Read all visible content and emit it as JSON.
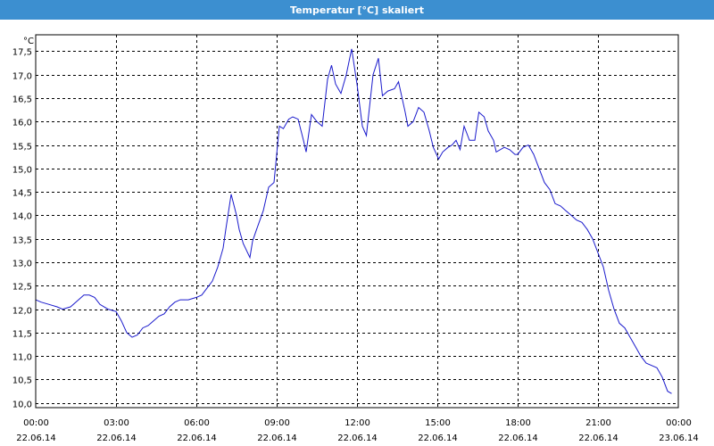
{
  "window": {
    "title": "Temperatur [°C] skaliert"
  },
  "colors": {
    "titlebar": "#3c8fd0",
    "line": "#1a1acc",
    "grid": "#000000"
  },
  "chart_data": {
    "type": "line",
    "title": "Temperatur [°C] skaliert",
    "ylabel": "°C",
    "xlabel": "",
    "ylim": [
      9.9,
      17.85
    ],
    "xlim": [
      0,
      24
    ],
    "grid": true,
    "yticks": [
      {
        "v": 10.0,
        "label": "10,0"
      },
      {
        "v": 10.5,
        "label": "10,5"
      },
      {
        "v": 11.0,
        "label": "11,0"
      },
      {
        "v": 11.5,
        "label": "11,5"
      },
      {
        "v": 12.0,
        "label": "12,0"
      },
      {
        "v": 12.5,
        "label": "12,5"
      },
      {
        "v": 13.0,
        "label": "13,0"
      },
      {
        "v": 13.5,
        "label": "13,5"
      },
      {
        "v": 14.0,
        "label": "14,0"
      },
      {
        "v": 14.5,
        "label": "14,5"
      },
      {
        "v": 15.0,
        "label": "15,0"
      },
      {
        "v": 15.5,
        "label": "15,5"
      },
      {
        "v": 16.0,
        "label": "16,0"
      },
      {
        "v": 16.5,
        "label": "16,5"
      },
      {
        "v": 17.0,
        "label": "17,0"
      },
      {
        "v": 17.5,
        "label": "17,5"
      }
    ],
    "xticks": [
      {
        "v": 0,
        "time": "00:00",
        "date": "22.06.14"
      },
      {
        "v": 3,
        "time": "03:00",
        "date": "22.06.14"
      },
      {
        "v": 6,
        "time": "06:00",
        "date": "22.06.14"
      },
      {
        "v": 9,
        "time": "09:00",
        "date": "22.06.14"
      },
      {
        "v": 12,
        "time": "12:00",
        "date": "22.06.14"
      },
      {
        "v": 15,
        "time": "15:00",
        "date": "22.06.14"
      },
      {
        "v": 18,
        "time": "18:00",
        "date": "22.06.14"
      },
      {
        "v": 21,
        "time": "21:00",
        "date": "22.06.14"
      },
      {
        "v": 24,
        "time": "00:00",
        "date": "23.06.14"
      }
    ],
    "series": [
      {
        "values": [
          [
            0.0,
            12.2
          ],
          [
            0.2,
            12.15
          ],
          [
            0.5,
            12.1
          ],
          [
            0.8,
            12.05
          ],
          [
            1.0,
            12.0
          ],
          [
            1.3,
            12.05
          ],
          [
            1.5,
            12.15
          ],
          [
            1.8,
            12.3
          ],
          [
            2.0,
            12.3
          ],
          [
            2.2,
            12.25
          ],
          [
            2.4,
            12.1
          ],
          [
            2.7,
            12.0
          ],
          [
            3.0,
            11.95
          ],
          [
            3.2,
            11.75
          ],
          [
            3.4,
            11.5
          ],
          [
            3.6,
            11.4
          ],
          [
            3.8,
            11.45
          ],
          [
            4.0,
            11.6
          ],
          [
            4.2,
            11.65
          ],
          [
            4.4,
            11.75
          ],
          [
            4.6,
            11.85
          ],
          [
            4.8,
            11.9
          ],
          [
            5.0,
            12.05
          ],
          [
            5.2,
            12.15
          ],
          [
            5.4,
            12.2
          ],
          [
            5.7,
            12.2
          ],
          [
            6.0,
            12.25
          ],
          [
            6.2,
            12.3
          ],
          [
            6.4,
            12.45
          ],
          [
            6.6,
            12.6
          ],
          [
            6.8,
            12.9
          ],
          [
            7.0,
            13.3
          ],
          [
            7.1,
            13.7
          ],
          [
            7.3,
            14.45
          ],
          [
            7.5,
            14.0
          ],
          [
            7.6,
            13.7
          ],
          [
            7.75,
            13.4
          ],
          [
            8.0,
            13.1
          ],
          [
            8.1,
            13.45
          ],
          [
            8.25,
            13.7
          ],
          [
            8.5,
            14.1
          ],
          [
            8.7,
            14.6
          ],
          [
            8.9,
            14.7
          ],
          [
            9.1,
            15.9
          ],
          [
            9.25,
            15.85
          ],
          [
            9.45,
            16.05
          ],
          [
            9.6,
            16.1
          ],
          [
            9.8,
            16.05
          ],
          [
            10.0,
            15.6
          ],
          [
            10.1,
            15.35
          ],
          [
            10.3,
            16.15
          ],
          [
            10.5,
            16.0
          ],
          [
            10.7,
            15.9
          ],
          [
            10.9,
            16.9
          ],
          [
            11.05,
            17.2
          ],
          [
            11.2,
            16.8
          ],
          [
            11.4,
            16.6
          ],
          [
            11.6,
            17.0
          ],
          [
            11.8,
            17.55
          ],
          [
            12.0,
            16.8
          ],
          [
            12.2,
            15.9
          ],
          [
            12.35,
            15.7
          ],
          [
            12.6,
            17.0
          ],
          [
            12.8,
            17.35
          ],
          [
            12.95,
            16.55
          ],
          [
            13.15,
            16.65
          ],
          [
            13.4,
            16.7
          ],
          [
            13.55,
            16.85
          ],
          [
            13.8,
            16.2
          ],
          [
            13.9,
            15.9
          ],
          [
            14.1,
            16.0
          ],
          [
            14.3,
            16.3
          ],
          [
            14.5,
            16.2
          ],
          [
            14.7,
            15.8
          ],
          [
            14.85,
            15.45
          ],
          [
            15.05,
            15.2
          ],
          [
            15.2,
            15.35
          ],
          [
            15.4,
            15.45
          ],
          [
            15.55,
            15.5
          ],
          [
            15.7,
            15.6
          ],
          [
            15.85,
            15.4
          ],
          [
            16.0,
            15.9
          ],
          [
            16.2,
            15.6
          ],
          [
            16.4,
            15.6
          ],
          [
            16.55,
            16.2
          ],
          [
            16.75,
            16.1
          ],
          [
            16.9,
            15.8
          ],
          [
            17.1,
            15.6
          ],
          [
            17.2,
            15.35
          ],
          [
            17.5,
            15.45
          ],
          [
            17.7,
            15.4
          ],
          [
            17.9,
            15.3
          ],
          [
            18.0,
            15.3
          ],
          [
            18.2,
            15.45
          ],
          [
            18.4,
            15.5
          ],
          [
            18.6,
            15.3
          ],
          [
            18.8,
            15.0
          ],
          [
            19.0,
            14.7
          ],
          [
            19.2,
            14.55
          ],
          [
            19.4,
            14.25
          ],
          [
            19.6,
            14.2
          ],
          [
            19.8,
            14.1
          ],
          [
            20.0,
            14.0
          ],
          [
            20.2,
            13.9
          ],
          [
            20.4,
            13.85
          ],
          [
            20.6,
            13.7
          ],
          [
            20.8,
            13.5
          ],
          [
            21.0,
            13.2
          ],
          [
            21.2,
            12.9
          ],
          [
            21.4,
            12.4
          ],
          [
            21.6,
            12.0
          ],
          [
            21.8,
            11.7
          ],
          [
            22.0,
            11.6
          ],
          [
            22.2,
            11.4
          ],
          [
            22.4,
            11.2
          ],
          [
            22.6,
            11.0
          ],
          [
            22.8,
            10.85
          ],
          [
            23.0,
            10.8
          ],
          [
            23.2,
            10.75
          ],
          [
            23.4,
            10.55
          ],
          [
            23.6,
            10.25
          ],
          [
            23.75,
            10.2
          ]
        ]
      }
    ]
  }
}
